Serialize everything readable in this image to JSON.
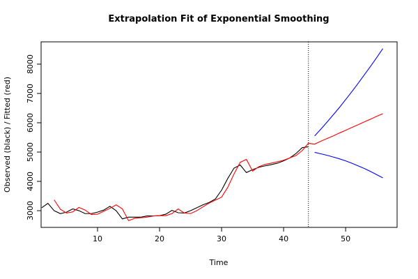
{
  "chart_data": {
    "type": "line",
    "title": "Extrapolation Fit of Exponential Smoothing",
    "xlabel": "Time",
    "ylabel": "Observed (black) / Fitted (red)",
    "x": [
      1,
      2,
      3,
      4,
      5,
      6,
      7,
      8,
      9,
      10,
      11,
      12,
      13,
      14,
      15,
      16,
      17,
      18,
      19,
      20,
      21,
      22,
      23,
      24,
      25,
      26,
      27,
      28,
      29,
      30,
      31,
      32,
      33,
      34,
      35,
      36,
      37,
      38,
      39,
      40,
      41,
      42,
      43,
      44,
      45,
      46,
      47,
      48,
      49,
      50,
      51,
      52,
      53,
      54,
      55,
      56
    ],
    "series": [
      {
        "color": "#000000",
        "values": [
          3100,
          3250,
          3000,
          2900,
          2950,
          3060,
          3000,
          2900,
          2900,
          2950,
          3020,
          3150,
          3000,
          2720,
          2780,
          2780,
          2780,
          2820,
          2820,
          2830,
          2880,
          3010,
          2930,
          2920,
          3000,
          3100,
          3200,
          3280,
          3400,
          3700,
          4100,
          4450,
          4560,
          4300,
          4400,
          4480,
          4530,
          4570,
          4620,
          4700,
          4800,
          4950,
          5150,
          5180,
          null,
          null,
          null,
          null,
          null,
          null,
          null,
          null,
          null,
          null,
          null,
          null
        ]
      },
      {
        "color": "#ff0000",
        "values": [
          null,
          null,
          3370,
          3050,
          2920,
          2960,
          3110,
          3020,
          2870,
          2880,
          2980,
          3080,
          3200,
          3060,
          2660,
          2740,
          2760,
          2780,
          2820,
          2830,
          2830,
          2900,
          3060,
          2920,
          2900,
          3000,
          3130,
          3260,
          3360,
          3460,
          3800,
          4250,
          4650,
          4750,
          4350,
          4500,
          4580,
          4620,
          4670,
          4720,
          4800,
          4880,
          5050,
          5300,
          5270,
          5370,
          5460,
          5550,
          5650,
          5740,
          5840,
          5930,
          6030,
          6120,
          6220,
          6310
        ]
      },
      {
        "color": "#0000ff",
        "values": [
          null,
          null,
          null,
          null,
          null,
          null,
          null,
          null,
          null,
          null,
          null,
          null,
          null,
          null,
          null,
          null,
          null,
          null,
          null,
          null,
          null,
          null,
          null,
          null,
          null,
          null,
          null,
          null,
          null,
          null,
          null,
          null,
          null,
          null,
          null,
          null,
          null,
          null,
          null,
          null,
          null,
          null,
          null,
          null,
          5550,
          5780,
          6020,
          6270,
          6520,
          6790,
          7060,
          7340,
          7630,
          7920,
          8220,
          8530
        ]
      },
      {
        "color": "#0000ff",
        "values": [
          null,
          null,
          null,
          null,
          null,
          null,
          null,
          null,
          null,
          null,
          null,
          null,
          null,
          null,
          null,
          null,
          null,
          null,
          null,
          null,
          null,
          null,
          null,
          null,
          null,
          null,
          null,
          null,
          null,
          null,
          null,
          null,
          null,
          null,
          null,
          null,
          null,
          null,
          null,
          null,
          null,
          null,
          null,
          null,
          4990,
          4940,
          4890,
          4830,
          4770,
          4700,
          4620,
          4530,
          4440,
          4340,
          4230,
          4120
        ]
      }
    ],
    "vline": 44,
    "xlim": [
      0.9,
      58.3
    ],
    "ylim": [
      2430,
      8760
    ],
    "xticks": [
      10,
      20,
      30,
      40,
      50
    ],
    "yticks": [
      3000,
      4000,
      5000,
      6000,
      7000,
      8000
    ]
  }
}
